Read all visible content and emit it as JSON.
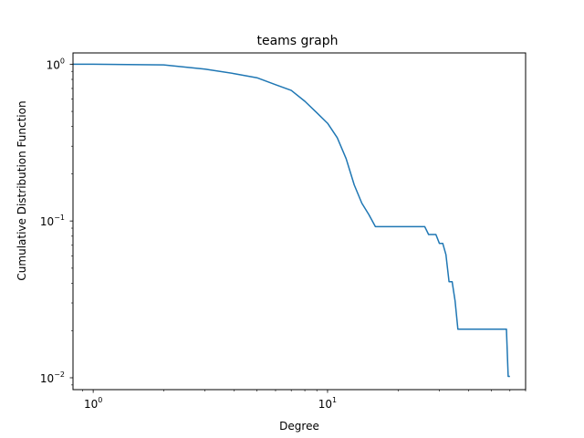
{
  "chart_data": {
    "type": "line",
    "title": "teams graph",
    "xlabel": "Degree",
    "ylabel": "Cumulative Distribution Function",
    "x_scale": "log",
    "y_scale": "log",
    "xlim": [
      0.82,
      70
    ],
    "ylim": [
      0.0084,
      1.18
    ],
    "x_ticks": [
      {
        "value": 1,
        "base": "10",
        "exp": "0"
      },
      {
        "value": 10,
        "base": "10",
        "exp": "1"
      }
    ],
    "y_ticks": [
      {
        "value": 0.01,
        "base": "10",
        "exp": "−2"
      },
      {
        "value": 0.1,
        "base": "10",
        "exp": "−1"
      },
      {
        "value": 1,
        "base": "10",
        "exp": "0"
      }
    ],
    "grid": false,
    "legend": "none",
    "series": [
      {
        "color": "#1f77b4",
        "x": [
          0.82,
          1,
          2,
          3,
          4,
          5,
          6,
          7,
          8,
          9,
          10,
          11,
          12,
          13,
          14,
          15,
          16,
          17,
          20,
          26,
          27,
          28,
          29,
          30,
          31,
          32,
          33,
          34,
          35,
          36,
          58,
          59,
          60
        ],
        "y": [
          1.0,
          1.0,
          0.99,
          0.93,
          0.87,
          0.82,
          0.74,
          0.68,
          0.58,
          0.49,
          0.42,
          0.34,
          0.25,
          0.17,
          0.13,
          0.11,
          0.092,
          0.092,
          0.092,
          0.092,
          0.082,
          0.082,
          0.082,
          0.072,
          0.072,
          0.061,
          0.041,
          0.041,
          0.031,
          0.0204,
          0.0204,
          0.0102,
          0.0102
        ]
      }
    ]
  }
}
